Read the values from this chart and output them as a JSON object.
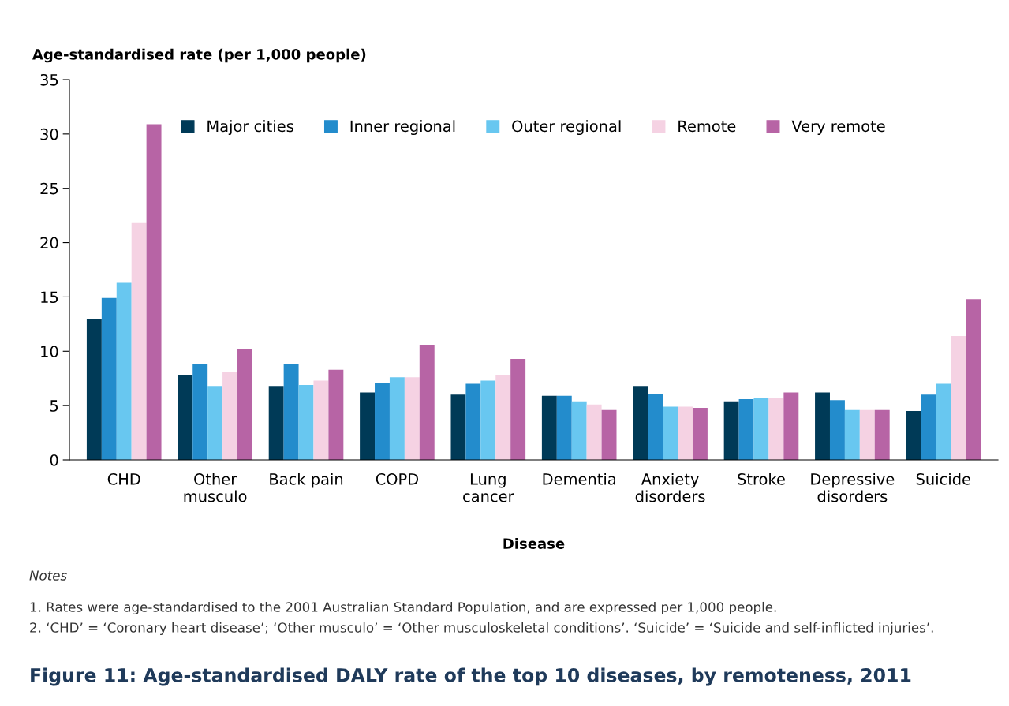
{
  "chart_data": {
    "type": "bar",
    "title": "Figure 11: Age-standardised DALY rate of the top 10 diseases, by remoteness, 2011",
    "ylabel": "Age-standardised rate (per 1,000 people)",
    "xlabel": "Disease",
    "categories": [
      "CHD",
      "Other\nmusculo",
      "Back pain",
      "COPD",
      "Lung\ncancer",
      "Dementia",
      "Anxiety\ndisorders",
      "Stroke",
      "Depressive\ndisorders",
      "Suicide"
    ],
    "series": [
      {
        "name": "Major cities",
        "color": "#003a57",
        "values": [
          13.0,
          7.8,
          6.8,
          6.2,
          6.0,
          5.9,
          6.8,
          5.4,
          6.2,
          4.5
        ]
      },
      {
        "name": "Inner regional",
        "color": "#238ccc",
        "values": [
          14.9,
          8.8,
          8.8,
          7.1,
          7.0,
          5.9,
          6.1,
          5.6,
          5.5,
          6.0
        ]
      },
      {
        "name": "Outer regional",
        "color": "#68c7f0",
        "values": [
          16.3,
          6.8,
          6.9,
          7.6,
          7.3,
          5.4,
          4.9,
          5.7,
          4.6,
          7.0
        ]
      },
      {
        "name": "Remote",
        "color": "#f5d2e3",
        "values": [
          21.8,
          8.1,
          7.3,
          7.6,
          7.8,
          5.1,
          4.9,
          5.7,
          4.6,
          11.4
        ]
      },
      {
        "name": "Very remote",
        "color": "#b764a5",
        "values": [
          30.9,
          10.2,
          8.3,
          10.6,
          9.3,
          4.6,
          4.8,
          6.2,
          4.6,
          14.8
        ]
      }
    ],
    "ylim": [
      0,
      35
    ],
    "yticks": [
      0,
      5,
      10,
      15,
      20,
      25,
      30,
      35
    ],
    "grid": false,
    "legend": "top",
    "annotations": [
      "Notes",
      "1. Rates were age-standardised to the 2001 Australian Standard Population, and are expressed per 1,000 people.",
      "2. ‘CHD’ = ‘Coronary heart disease’; ‘Other musculo’ = ‘Other musculoskeletal conditions’. ‘Suicide’ = ‘Suicide and self-inflicted injuries’."
    ]
  }
}
